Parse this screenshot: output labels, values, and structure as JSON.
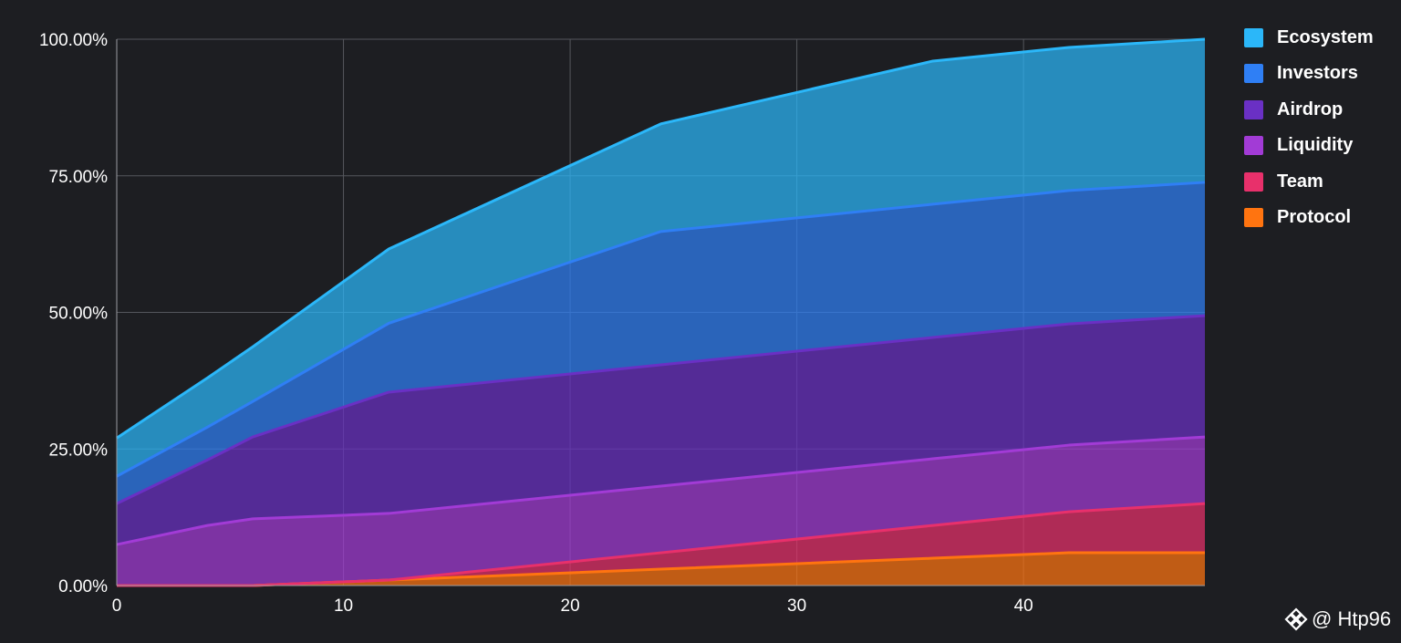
{
  "chart_data": {
    "type": "area",
    "stacked": true,
    "title": "",
    "xlabel": "",
    "ylabel": "",
    "xlim": [
      0,
      48
    ],
    "ylim": [
      0,
      100
    ],
    "x_ticks": [
      0,
      10,
      20,
      30,
      40
    ],
    "y_ticks": [
      0,
      25,
      50,
      75,
      100
    ],
    "y_tick_labels": [
      "0.00%",
      "25.00%",
      "50.00%",
      "75.00%",
      "100.00%"
    ],
    "grid": true,
    "legend_position": "right",
    "x": [
      0,
      4,
      6,
      12,
      24,
      36,
      42,
      48
    ],
    "series": [
      {
        "name": "Protocol",
        "color": "#ff7410",
        "values": [
          0,
          0,
          0,
          1,
          3,
          5,
          6,
          6
        ]
      },
      {
        "name": "Team",
        "color": "#e8306b",
        "values": [
          0,
          0,
          0,
          0,
          3,
          6,
          7.5,
          9
        ]
      },
      {
        "name": "Liquidity",
        "color": "#a23bd6",
        "values": [
          7.5,
          11,
          12.2,
          12.2,
          12.2,
          12.2,
          12.2,
          12.2
        ]
      },
      {
        "name": "Airdrop",
        "color": "#6a30c4",
        "values": [
          7.5,
          12,
          15,
          22.2,
          22.2,
          22.2,
          22.2,
          22.2
        ]
      },
      {
        "name": "Investors",
        "color": "#2f7ff5",
        "values": [
          5,
          6,
          6.5,
          12.6,
          24.4,
          24.4,
          24.4,
          24.4
        ]
      },
      {
        "name": "Ecosystem",
        "color": "#2bb7f9",
        "values": [
          7,
          9,
          10,
          13.6,
          19.7,
          26.2,
          26.2,
          26.2
        ]
      }
    ]
  },
  "legend": {
    "items": [
      {
        "label": "Ecosystem",
        "color": "#2bb7f9"
      },
      {
        "label": "Investors",
        "color": "#2f7ff5"
      },
      {
        "label": "Airdrop",
        "color": "#6a30c4"
      },
      {
        "label": "Liquidity",
        "color": "#a23bd6"
      },
      {
        "label": "Team",
        "color": "#e8306b"
      },
      {
        "label": "Protocol",
        "color": "#ff7410"
      }
    ]
  },
  "watermark": {
    "text": "@ Htp96",
    "icon": "binance-logo-icon"
  }
}
